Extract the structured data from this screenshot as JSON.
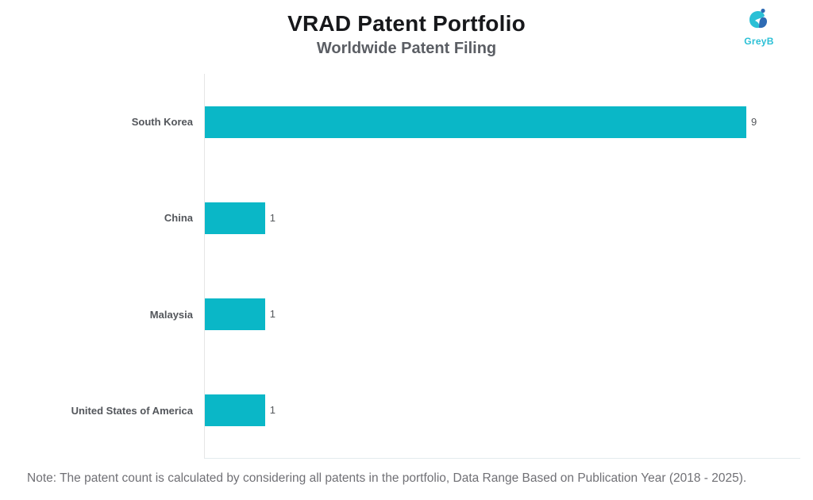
{
  "header": {
    "title": "VRAD Patent Portfolio",
    "subtitle": "Worldwide Patent Filing"
  },
  "logo": {
    "text": "GreyB",
    "accent_color": "#2bc0d6",
    "dark_color": "#2e6bb4"
  },
  "chart_data": {
    "type": "bar",
    "orientation": "horizontal",
    "title": "VRAD Patent Portfolio",
    "subtitle": "Worldwide Patent Filing",
    "categories": [
      "South Korea",
      "China",
      "Malaysia",
      "United States of America"
    ],
    "values": [
      9,
      1,
      1,
      1
    ],
    "value_labels": [
      "9",
      "1",
      "1",
      "1"
    ],
    "bar_color": "#0ab7c7",
    "xlim": [
      0,
      9.9
    ],
    "grid": false,
    "legend": "none",
    "xlabel": "",
    "ylabel": ""
  },
  "note": "Note: The patent count is calculated by considering all patents in the portfolio, Data Range Based on Publication Year (2018 - 2025)."
}
